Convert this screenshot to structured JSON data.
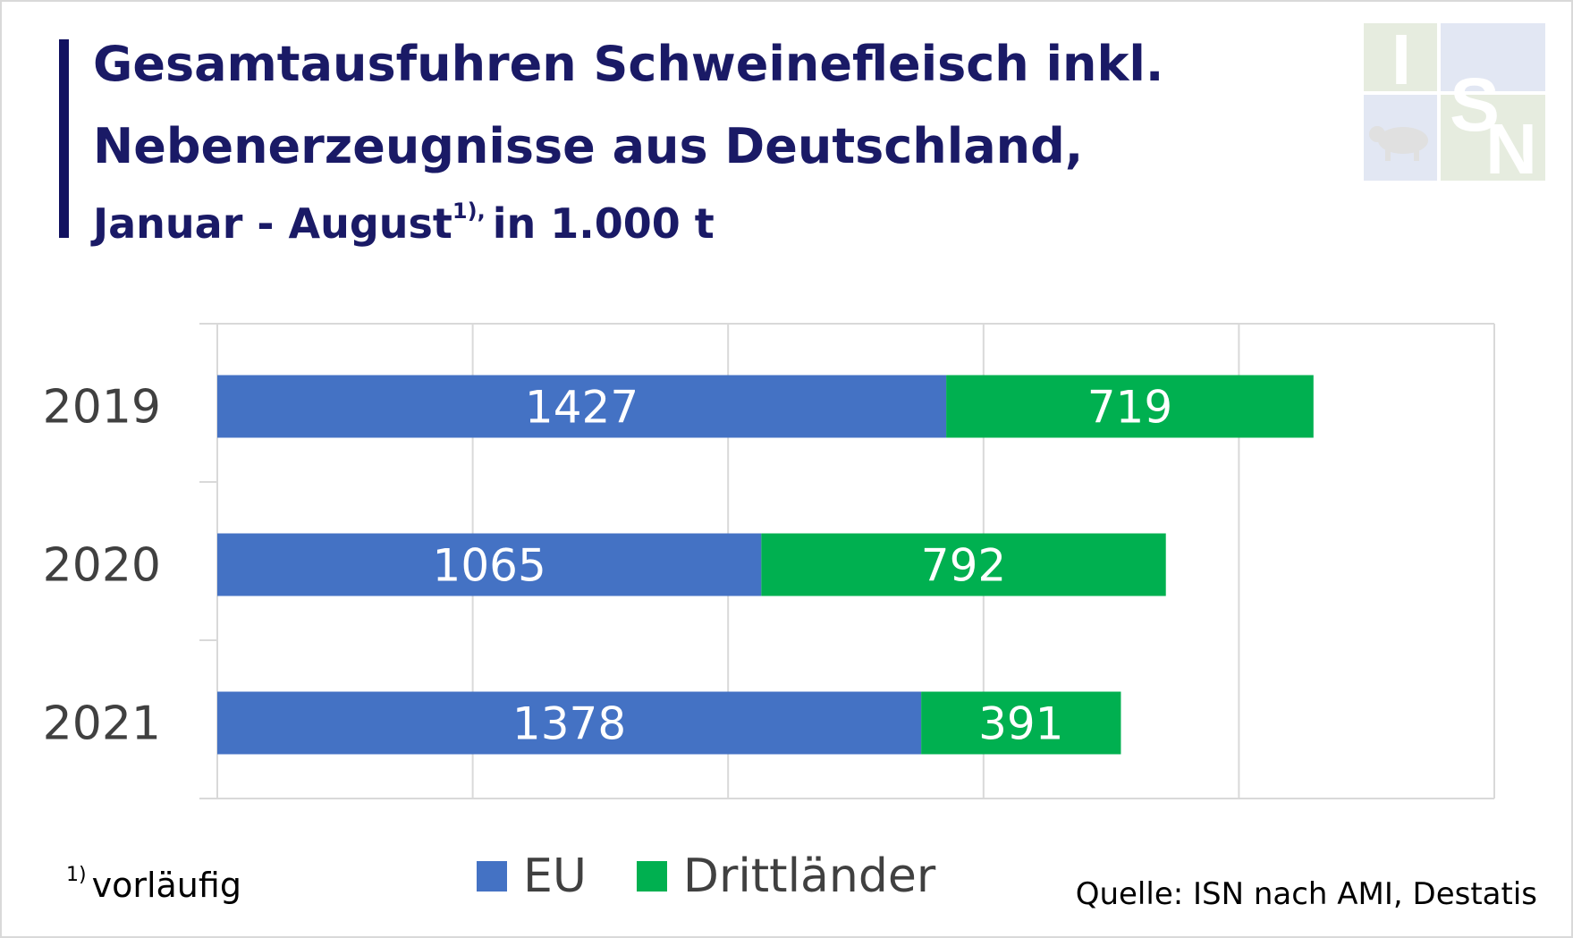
{
  "title": {
    "line1": "Gesamtausfuhren Schweinefleisch inkl.",
    "line2": "Nebenerzeugnisse aus Deutschland,",
    "line3_main": "Januar - August",
    "line3_sup": "1),",
    "line3_unit": "in 1.000 t"
  },
  "logo": {
    "text": "ISN",
    "icon": "pig-icon"
  },
  "chart_data": {
    "type": "bar",
    "orientation": "horizontal",
    "stacked": true,
    "categories": [
      "2019",
      "2020",
      "2021"
    ],
    "series": [
      {
        "name": "EU",
        "values": [
          1427,
          1065,
          1378
        ],
        "color": "#4472c4"
      },
      {
        "name": "Drittländer",
        "values": [
          719,
          792,
          391
        ],
        "color": "#00b050"
      }
    ],
    "xlim": [
      0,
      2500
    ],
    "grid": true,
    "legend_position": "bottom"
  },
  "footnote": {
    "mark": "1)",
    "text": "vorläufig"
  },
  "source": "Quelle: ISN nach AMI, Destatis"
}
